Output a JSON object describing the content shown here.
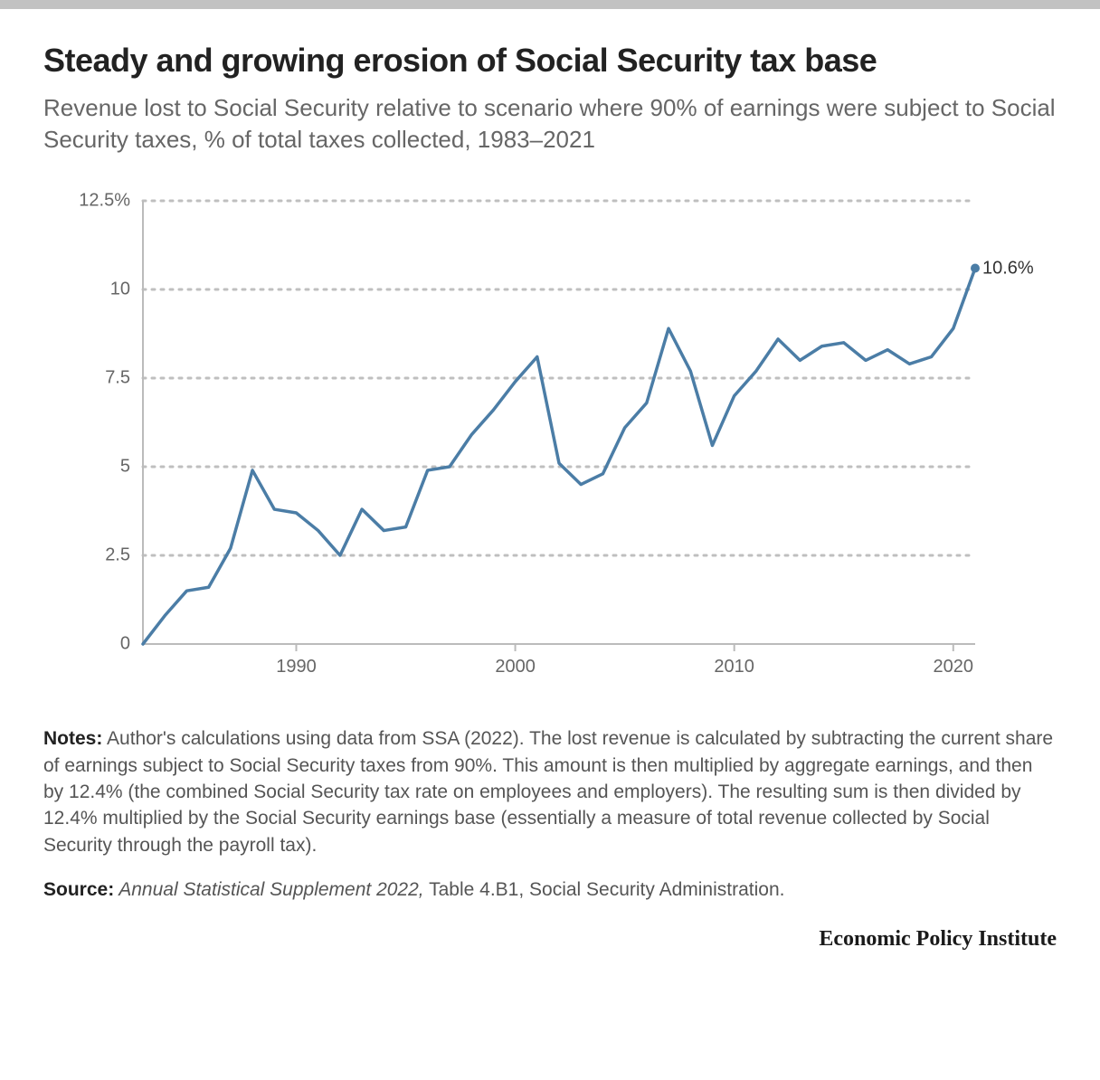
{
  "title": "Steady and growing erosion of Social Security tax base",
  "subtitle": "Revenue lost to Social Security relative to scenario where 90% of earnings were subject to Social Security taxes, % of total taxes collected, 1983–2021",
  "chart": {
    "type": "line",
    "xlim": [
      1983,
      2021
    ],
    "ylim": [
      0,
      12.5
    ],
    "y_ticks": [
      0,
      2.5,
      5,
      7.5,
      10,
      12.5
    ],
    "y_tick_labels": [
      "0",
      "2.5",
      "5",
      "7.5",
      "10",
      "12.5%"
    ],
    "x_ticks": [
      1990,
      2000,
      2010,
      2020
    ],
    "x_tick_labels": [
      "1990",
      "2000",
      "2010",
      "2020"
    ],
    "grid_color": "#bfbfbf",
    "axis_color": "#bbbbbb",
    "line_color": "#4b7da6",
    "line_width": 3.5,
    "end_point_color": "#4b7da6",
    "end_point_radius": 5,
    "end_label": "10.6%",
    "end_label_color": "#333333",
    "background_color": "#ffffff",
    "series": {
      "x": [
        1983,
        1984,
        1985,
        1986,
        1987,
        1988,
        1989,
        1990,
        1991,
        1992,
        1993,
        1994,
        1995,
        1996,
        1997,
        1998,
        1999,
        2000,
        2001,
        2002,
        2003,
        2004,
        2005,
        2006,
        2007,
        2008,
        2009,
        2010,
        2011,
        2012,
        2013,
        2014,
        2015,
        2016,
        2017,
        2018,
        2019,
        2020,
        2021
      ],
      "y": [
        0.0,
        0.8,
        1.5,
        1.6,
        2.7,
        4.9,
        3.8,
        3.7,
        3.2,
        2.5,
        3.8,
        3.2,
        3.3,
        4.9,
        5.0,
        5.9,
        6.6,
        7.4,
        8.1,
        5.1,
        4.5,
        4.8,
        6.1,
        6.8,
        8.9,
        7.7,
        5.6,
        7.0,
        7.7,
        8.6,
        8.0,
        8.4,
        8.5,
        8.0,
        8.3,
        7.9,
        8.1,
        8.9,
        10.6
      ]
    }
  },
  "notes_label": "Notes:",
  "notes_text": " Author's calculations using data from SSA (2022). The lost revenue is calculated by subtracting the current share of earnings subject to Social Security taxes from 90%. This amount is then multiplied by aggregate earnings, and then by 12.4% (the combined Social Security tax rate on employees and employers). The resulting sum is then divided by 12.4% multiplied by the Social Security earnings base (essentially a measure of total revenue collected by Social Security through the payroll tax).",
  "source_label": "Source:",
  "source_italic": " Annual Statistical Supplement 2022,",
  "source_rest": " Table 4.B1, Social Security Administration.",
  "attribution": "Economic Policy Institute"
}
